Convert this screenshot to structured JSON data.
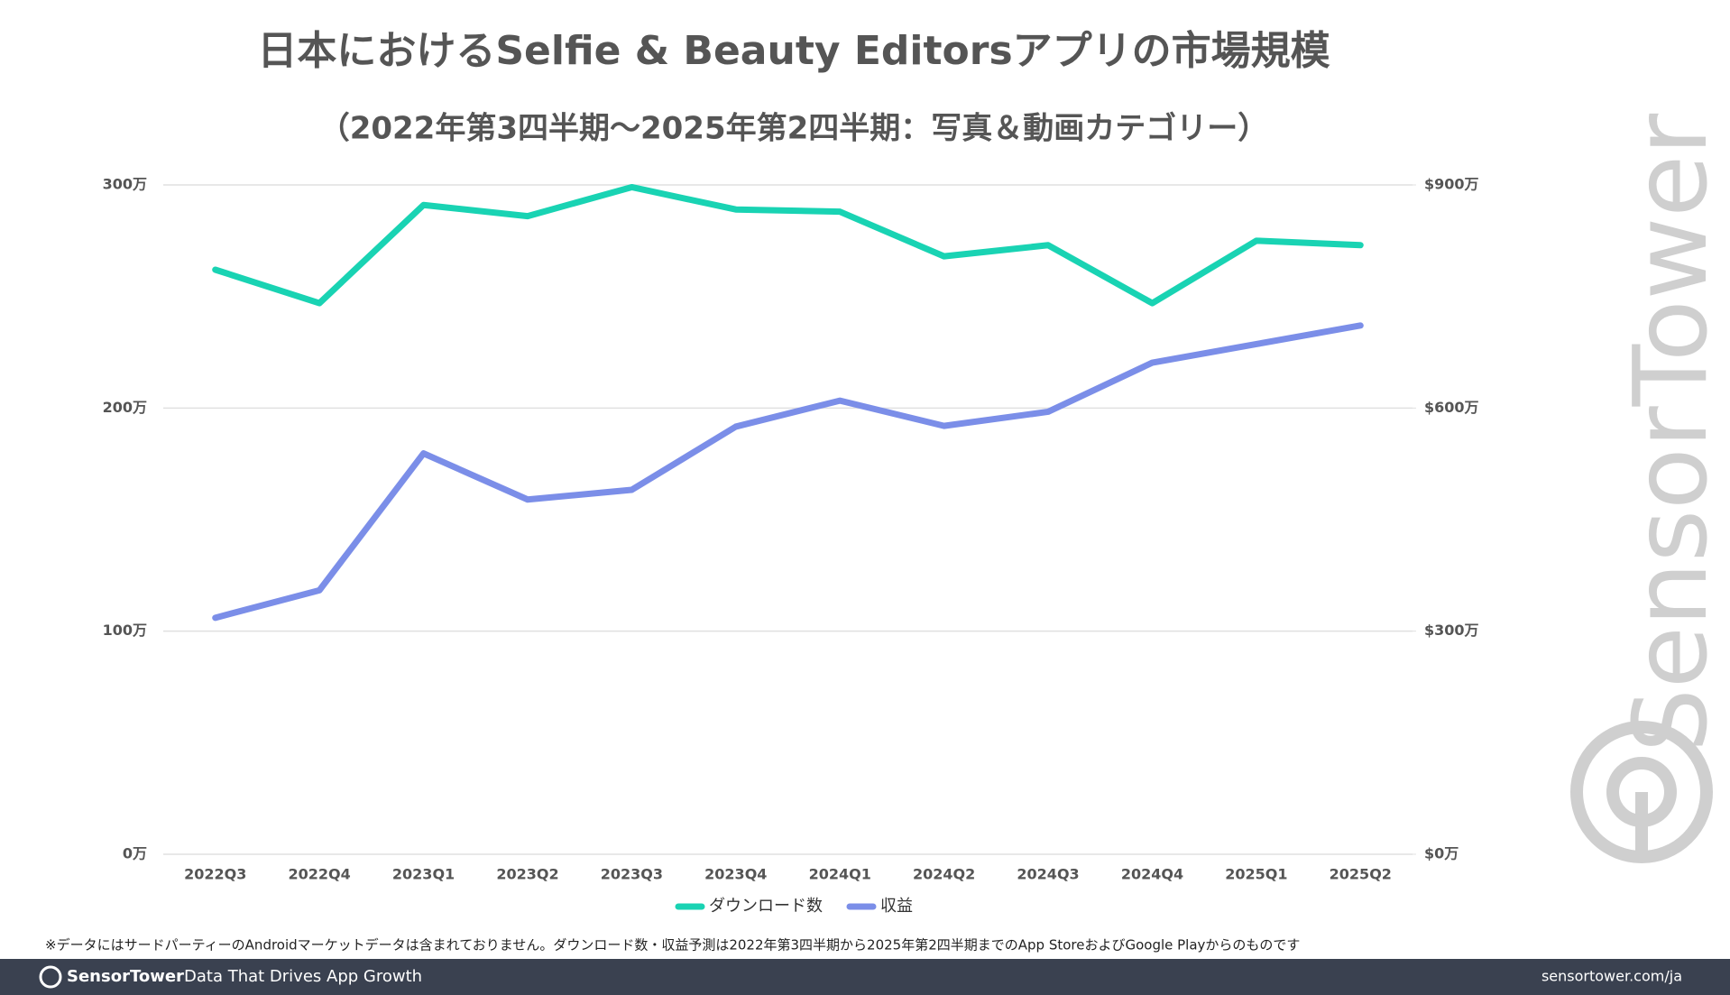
{
  "chart_data": {
    "type": "line",
    "title": "日本におけるSelfie & Beauty Editorsアプリの市場規模",
    "subtitle": "（2022年第3四半期～2025年第2四半期：写真＆動画カテゴリー）",
    "categories": [
      "2022Q3",
      "2022Q4",
      "2023Q1",
      "2023Q2",
      "2023Q3",
      "2023Q4",
      "2024Q1",
      "2024Q2",
      "2024Q3",
      "2024Q4",
      "2025Q1",
      "2025Q2"
    ],
    "series": [
      {
        "name": "ダウンロード数",
        "color": "#19d3b3",
        "values": [
          262,
          247,
          291,
          286,
          299,
          289,
          288,
          268,
          273,
          247,
          275,
          273
        ]
      },
      {
        "name": "収益",
        "color": "#7b8ee8",
        "axis": "y2",
        "values": [
          318,
          355,
          539,
          477,
          490,
          575,
          610,
          576,
          595,
          661,
          686,
          711
        ]
      }
    ],
    "ylim": [
      0,
      300
    ],
    "yticks": [
      {
        "value": 0,
        "label": "0万"
      },
      {
        "value": 100,
        "label": "100万"
      },
      {
        "value": 200,
        "label": "200万"
      },
      {
        "value": 300,
        "label": "300万"
      }
    ],
    "y2lim": [
      0,
      900
    ],
    "y2ticks": [
      {
        "value": 0,
        "label": "$0万"
      },
      {
        "value": 300,
        "label": "$300万"
      },
      {
        "value": 600,
        "label": "$600万"
      },
      {
        "value": 900,
        "label": "$900万"
      }
    ],
    "grid": true,
    "legend": "bottom",
    "footnote": "※データにはサードパーティーのAndroidマーケットデータは含まれておりません。ダウンロード数・収益予測は2022年第3四半期から2025年第2四半期までのApp StoreおよびGoogle Playからのものです",
    "watermark": "SensorTower",
    "footer": {
      "brand": "SensorTower",
      "tagline": "Data That Drives App Growth",
      "url": "sensortower.com/ja"
    }
  }
}
